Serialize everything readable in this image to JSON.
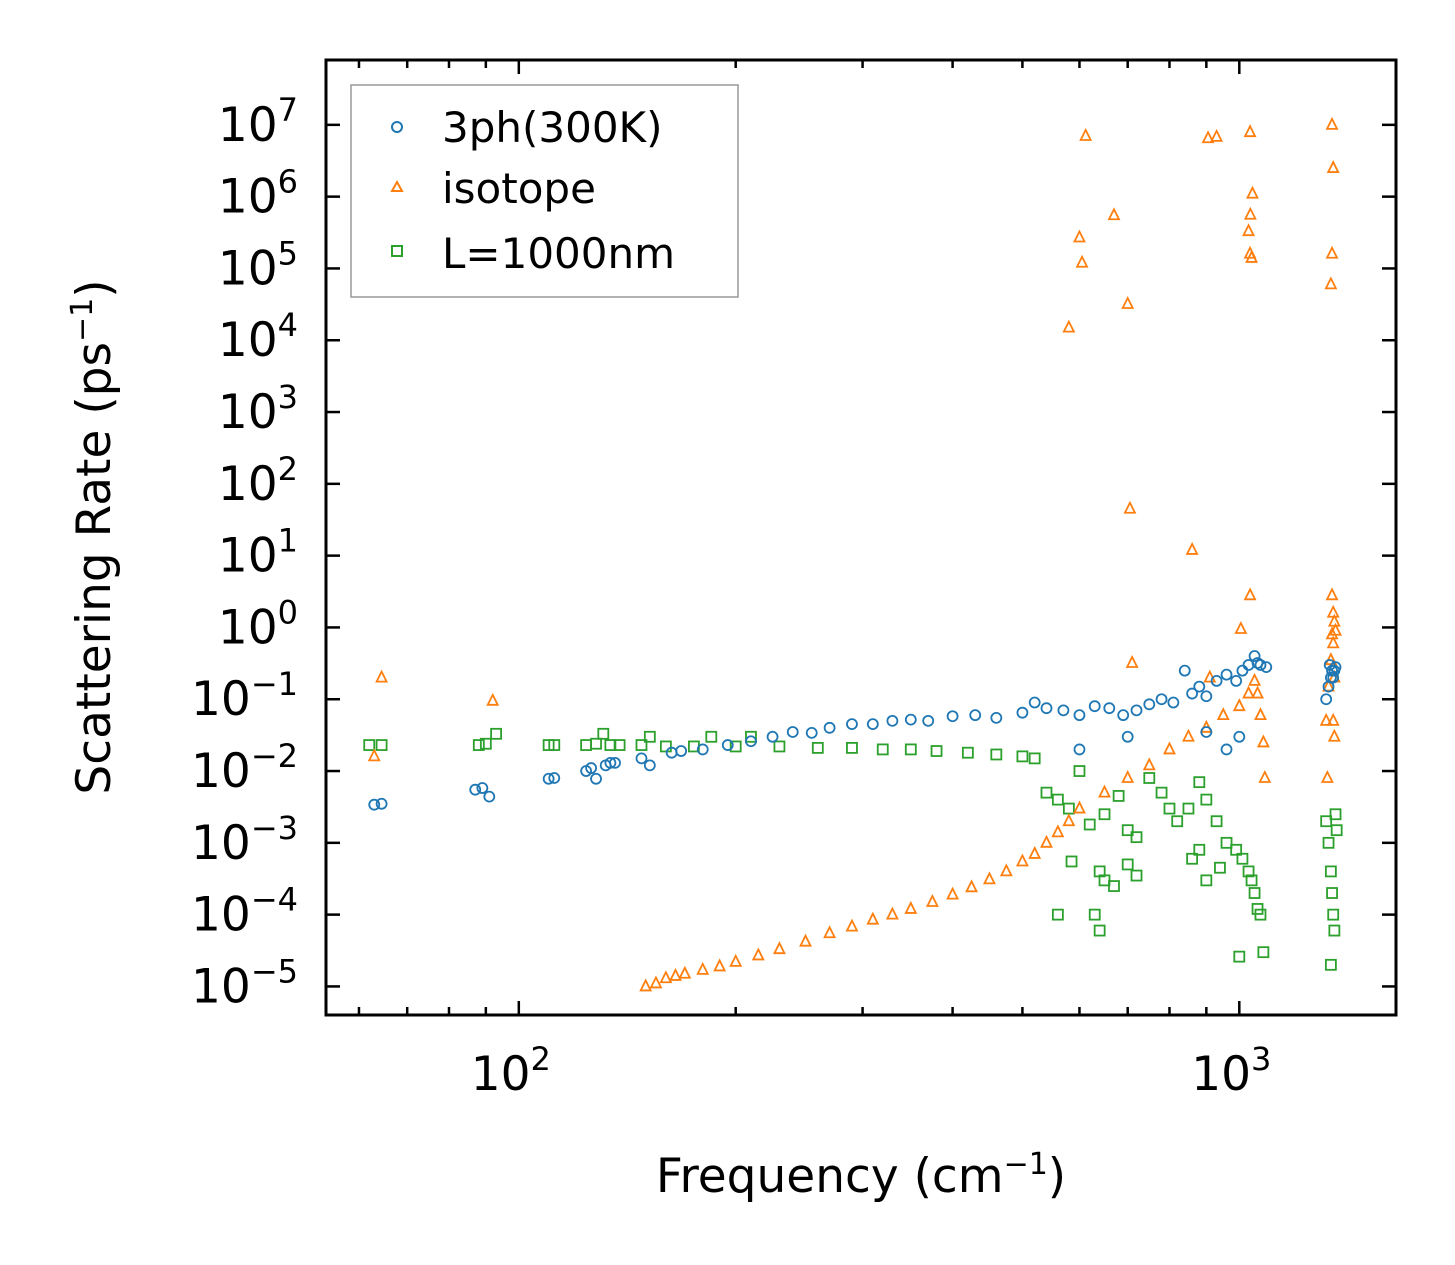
{
  "chart_data": {
    "type": "scatter",
    "title": "",
    "xlabel": {
      "text": "Frequency (cm",
      "sup": "−1",
      "suffix": ")"
    },
    "ylabel": {
      "text": "Scattering Rate (ps",
      "sup": "−1",
      "suffix": ")"
    },
    "xscale": "log",
    "yscale": "log",
    "xlim": [
      54,
      1650
    ],
    "ylim": [
      4e-06,
      80000000.0
    ],
    "grid": false,
    "legend_position": "top-left",
    "x_tick_labels": [
      {
        "value": 100,
        "base": "10",
        "exp": "2"
      },
      {
        "value": 1000,
        "base": "10",
        "exp": "3"
      }
    ],
    "y_tick_labels": [
      {
        "value": 10000000.0,
        "base": "10",
        "exp": "7"
      },
      {
        "value": 1000000.0,
        "base": "10",
        "exp": "6"
      },
      {
        "value": 100000.0,
        "base": "10",
        "exp": "5"
      },
      {
        "value": 10000.0,
        "base": "10",
        "exp": "4"
      },
      {
        "value": 1000.0,
        "base": "10",
        "exp": "3"
      },
      {
        "value": 100.0,
        "base": "10",
        "exp": "2"
      },
      {
        "value": 10.0,
        "base": "10",
        "exp": "1"
      },
      {
        "value": 1.0,
        "base": "10",
        "exp": "0"
      },
      {
        "value": 0.1,
        "base": "10",
        "exp": "−1"
      },
      {
        "value": 0.01,
        "base": "10",
        "exp": "−2"
      },
      {
        "value": 0.001,
        "base": "10",
        "exp": "−3"
      },
      {
        "value": 0.0001,
        "base": "10",
        "exp": "−4"
      },
      {
        "value": 1e-05,
        "base": "10",
        "exp": "−5"
      }
    ],
    "series": [
      {
        "name": "3ph(300K)",
        "marker": "circle",
        "color": "#1f77b4",
        "points": [
          [
            63,
            0.0034
          ],
          [
            64.5,
            0.0035
          ],
          [
            87,
            0.0055
          ],
          [
            89,
            0.0058
          ],
          [
            91,
            0.0044
          ],
          [
            110,
            0.0078
          ],
          [
            112,
            0.008
          ],
          [
            124,
            0.01
          ],
          [
            126,
            0.011
          ],
          [
            128,
            0.0078
          ],
          [
            132,
            0.012
          ],
          [
            134,
            0.013
          ],
          [
            136,
            0.013
          ],
          [
            148,
            0.015
          ],
          [
            152,
            0.012
          ],
          [
            163,
            0.018
          ],
          [
            168,
            0.019
          ],
          [
            180,
            0.02
          ],
          [
            195,
            0.023
          ],
          [
            210,
            0.026
          ],
          [
            225,
            0.03
          ],
          [
            240,
            0.035
          ],
          [
            255,
            0.034
          ],
          [
            270,
            0.04
          ],
          [
            290,
            0.045
          ],
          [
            310,
            0.045
          ],
          [
            330,
            0.05
          ],
          [
            350,
            0.052
          ],
          [
            370,
            0.05
          ],
          [
            400,
            0.058
          ],
          [
            430,
            0.06
          ],
          [
            460,
            0.055
          ],
          [
            500,
            0.065
          ],
          [
            520,
            0.09
          ],
          [
            540,
            0.075
          ],
          [
            570,
            0.07
          ],
          [
            600,
            0.06
          ],
          [
            630,
            0.08
          ],
          [
            660,
            0.075
          ],
          [
            690,
            0.06
          ],
          [
            720,
            0.07
          ],
          [
            750,
            0.085
          ],
          [
            780,
            0.1
          ],
          [
            810,
            0.09
          ],
          [
            840,
            0.25
          ],
          [
            860,
            0.12
          ],
          [
            880,
            0.15
          ],
          [
            900,
            0.11
          ],
          [
            930,
            0.18
          ],
          [
            960,
            0.22
          ],
          [
            990,
            0.18
          ],
          [
            1010,
            0.25
          ],
          [
            1030,
            0.3
          ],
          [
            1050,
            0.4
          ],
          [
            1060,
            0.32
          ],
          [
            1070,
            0.3
          ],
          [
            1090,
            0.28
          ],
          [
            1320,
            0.1
          ],
          [
            1330,
            0.15
          ],
          [
            1335,
            0.3
          ],
          [
            1340,
            0.2
          ],
          [
            1345,
            0.25
          ],
          [
            1350,
            0.2
          ],
          [
            1355,
            0.25
          ],
          [
            1360,
            0.28
          ],
          [
            600,
            0.02
          ],
          [
            700,
            0.03
          ],
          [
            900,
            0.035
          ],
          [
            960,
            0.02
          ],
          [
            1000,
            0.03
          ]
        ]
      },
      {
        "name": "isotope",
        "marker": "triangle",
        "color": "#ff7f0e",
        "points": [
          [
            63,
            0.016
          ],
          [
            64.5,
            0.2
          ],
          [
            92,
            0.095
          ],
          [
            612,
            7000000
          ],
          [
            905,
            6500000
          ],
          [
            930,
            6800000
          ],
          [
            1035,
            7900000
          ],
          [
            1345,
            10000000
          ],
          [
            1350,
            2500000
          ],
          [
            1043,
            1100000
          ],
          [
            1036,
            560000
          ],
          [
            600,
            270000
          ],
          [
            670,
            550000
          ],
          [
            1030,
            330000
          ],
          [
            605,
            120000
          ],
          [
            1035,
            160000
          ],
          [
            1040,
            140000
          ],
          [
            1345,
            160000
          ],
          [
            1340,
            60000
          ],
          [
            700,
            32000
          ],
          [
            580,
            15000
          ],
          [
            705,
            45
          ],
          [
            860,
            12
          ],
          [
            1035,
            2.8
          ],
          [
            1345,
            2.8
          ],
          [
            1350,
            1.6
          ],
          [
            1005,
            0.95
          ],
          [
            1345,
            0.8
          ],
          [
            1355,
            1.2
          ],
          [
            1360,
            0.9
          ],
          [
            910,
            0.2
          ],
          [
            710,
            0.32
          ],
          [
            1350,
            0.05
          ],
          [
            1355,
            0.03
          ],
          [
            1325,
            0.008
          ],
          [
            1085,
            0.008
          ],
          [
            150,
            1e-05
          ],
          [
            155,
            1.1e-05
          ],
          [
            160,
            1.3e-05
          ],
          [
            165,
            1.4e-05
          ],
          [
            170,
            1.5e-05
          ],
          [
            180,
            1.7e-05
          ],
          [
            190,
            1.9e-05
          ],
          [
            200,
            2.2e-05
          ],
          [
            215,
            2.7e-05
          ],
          [
            230,
            3.3e-05
          ],
          [
            250,
            4.2e-05
          ],
          [
            270,
            5.5e-05
          ],
          [
            290,
            6.8e-05
          ],
          [
            310,
            8.5e-05
          ],
          [
            330,
            0.0001
          ],
          [
            350,
            0.00012
          ],
          [
            375,
            0.00015
          ],
          [
            400,
            0.00019
          ],
          [
            425,
            0.00024
          ],
          [
            450,
            0.00031
          ],
          [
            475,
            0.0004
          ],
          [
            500,
            0.00055
          ],
          [
            520,
            0.0007
          ],
          [
            540,
            0.001
          ],
          [
            560,
            0.0014
          ],
          [
            580,
            0.002
          ],
          [
            600,
            0.003
          ],
          [
            650,
            0.005
          ],
          [
            700,
            0.008
          ],
          [
            750,
            0.012
          ],
          [
            800,
            0.02
          ],
          [
            850,
            0.03
          ],
          [
            900,
            0.04
          ],
          [
            950,
            0.06
          ],
          [
            1000,
            0.08
          ],
          [
            1030,
            0.12
          ],
          [
            1050,
            0.18
          ],
          [
            1060,
            0.12
          ],
          [
            1070,
            0.06
          ],
          [
            1080,
            0.025
          ],
          [
            1320,
            0.05
          ],
          [
            1330,
            0.15
          ],
          [
            1340,
            0.35
          ],
          [
            1350,
            0.6
          ],
          [
            1355,
            0.2
          ]
        ]
      },
      {
        "name": "L=1000nm",
        "marker": "square",
        "color": "#2ca02c",
        "points": [
          [
            62,
            0.023
          ],
          [
            64.5,
            0.023
          ],
          [
            88,
            0.023
          ],
          [
            90,
            0.024
          ],
          [
            93,
            0.033
          ],
          [
            110,
            0.023
          ],
          [
            112,
            0.023
          ],
          [
            124,
            0.023
          ],
          [
            128,
            0.024
          ],
          [
            131,
            0.033
          ],
          [
            134,
            0.023
          ],
          [
            138,
            0.023
          ],
          [
            148,
            0.023
          ],
          [
            152,
            0.03
          ],
          [
            160,
            0.022
          ],
          [
            175,
            0.022
          ],
          [
            185,
            0.03
          ],
          [
            200,
            0.022
          ],
          [
            210,
            0.03
          ],
          [
            230,
            0.022
          ],
          [
            260,
            0.021
          ],
          [
            290,
            0.021
          ],
          [
            320,
            0.02
          ],
          [
            350,
            0.02
          ],
          [
            380,
            0.019
          ],
          [
            420,
            0.018
          ],
          [
            460,
            0.017
          ],
          [
            500,
            0.016
          ],
          [
            520,
            0.015
          ],
          [
            540,
            0.005
          ],
          [
            560,
            0.004
          ],
          [
            580,
            0.003
          ],
          [
            600,
            0.01
          ],
          [
            620,
            0.0018
          ],
          [
            650,
            0.0025
          ],
          [
            680,
            0.0045
          ],
          [
            700,
            0.0015
          ],
          [
            720,
            0.0012
          ],
          [
            750,
            0.008
          ],
          [
            780,
            0.005
          ],
          [
            800,
            0.003
          ],
          [
            820,
            0.002
          ],
          [
            850,
            0.003
          ],
          [
            880,
            0.007
          ],
          [
            900,
            0.004
          ],
          [
            930,
            0.002
          ],
          [
            960,
            0.001
          ],
          [
            990,
            0.0008
          ],
          [
            1010,
            0.0006
          ],
          [
            1030,
            0.0004
          ],
          [
            1040,
            0.0003
          ],
          [
            1050,
            0.0002
          ],
          [
            1060,
            0.00012
          ],
          [
            1070,
            0.0001
          ],
          [
            1000,
            2.6e-05
          ],
          [
            1080,
            3e-05
          ],
          [
            1320,
            0.002
          ],
          [
            1330,
            0.001
          ],
          [
            1340,
            0.0004
          ],
          [
            1345,
            0.0002
          ],
          [
            1350,
            0.0001
          ],
          [
            1355,
            6e-05
          ],
          [
            1340,
            2e-05
          ],
          [
            1360,
            0.0025
          ],
          [
            1365,
            0.0015
          ],
          [
            640,
            0.0004
          ],
          [
            650,
            0.0003
          ],
          [
            670,
            0.00025
          ],
          [
            630,
            0.0001
          ],
          [
            640,
            6e-05
          ],
          [
            585,
            0.00055
          ],
          [
            560,
            0.0001
          ],
          [
            700,
            0.0005
          ],
          [
            720,
            0.00035
          ],
          [
            860,
            0.0006
          ],
          [
            880,
            0.0008
          ],
          [
            900,
            0.0003
          ],
          [
            940,
            0.00045
          ]
        ]
      }
    ]
  }
}
